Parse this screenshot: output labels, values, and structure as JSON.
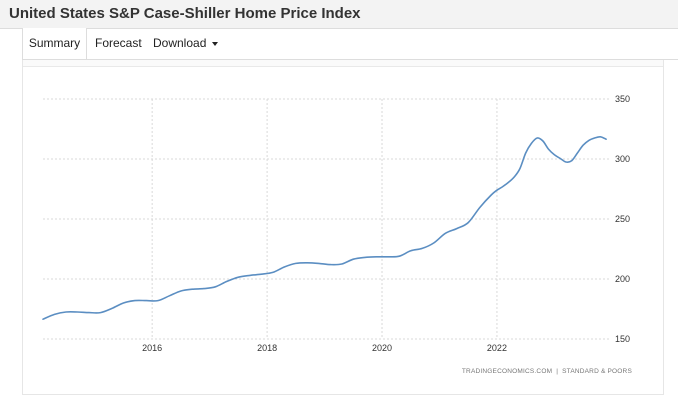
{
  "header": {
    "title": "United States S&P Case-Shiller Home Price Index"
  },
  "tabs": [
    {
      "label": "Summary"
    },
    {
      "label": "Forecast"
    },
    {
      "label": "Download"
    }
  ],
  "credit": {
    "source": "TRADINGECONOMICS.COM",
    "separator": "|",
    "provider": "STANDARD & POORS"
  },
  "colors": {
    "line": "#5b8ec2",
    "grid": "#d9d9d9"
  },
  "chart_data": {
    "type": "line",
    "title": "",
    "xlabel": "",
    "ylabel": "",
    "grid": true,
    "y_axis_side": "right",
    "xlim": [
      2014.1,
      2023.95
    ],
    "ylim": [
      150,
      350
    ],
    "x_ticks": [
      {
        "value": 2016,
        "label": "2016"
      },
      {
        "value": 2018,
        "label": "2018"
      },
      {
        "value": 2020,
        "label": "2020"
      },
      {
        "value": 2022,
        "label": "2022"
      }
    ],
    "y_ticks": [
      {
        "value": 150,
        "label": "150"
      },
      {
        "value": 200,
        "label": "200"
      },
      {
        "value": 250,
        "label": "250"
      },
      {
        "value": 300,
        "label": "300"
      },
      {
        "value": 350,
        "label": "350"
      }
    ],
    "series": [
      {
        "x": [
          2014.1,
          2014.3,
          2014.5,
          2014.7,
          2014.9,
          2015.1,
          2015.3,
          2015.5,
          2015.7,
          2015.9,
          2016.1,
          2016.3,
          2016.5,
          2016.7,
          2016.9,
          2017.1,
          2017.3,
          2017.5,
          2017.7,
          2017.9,
          2018.1,
          2018.3,
          2018.5,
          2018.7,
          2018.9,
          2019.1,
          2019.3,
          2019.5,
          2019.7,
          2019.9,
          2020.1,
          2020.3,
          2020.5,
          2020.7,
          2020.9,
          2021.1,
          2021.3,
          2021.5,
          2021.7,
          2021.9,
          2022.0,
          2022.1,
          2022.2,
          2022.3,
          2022.4,
          2022.5,
          2022.6,
          2022.7,
          2022.8,
          2022.9,
          2023.0,
          2023.1,
          2023.2,
          2023.3,
          2023.4,
          2023.5,
          2023.6,
          2023.7,
          2023.8,
          2023.9
        ],
        "values": [
          166.5,
          170.5,
          172.5,
          172.5,
          172,
          172,
          175.5,
          180,
          182,
          182,
          182,
          186,
          190,
          191.5,
          192,
          193.5,
          198,
          201.5,
          203,
          204,
          205.5,
          210,
          213,
          213.5,
          213,
          212,
          212.5,
          216.5,
          218,
          218.5,
          218.5,
          219,
          223.5,
          225.5,
          230,
          238,
          242,
          247,
          259.5,
          270,
          274,
          277,
          280.5,
          285,
          292,
          305,
          313,
          317.5,
          315,
          308,
          303.5,
          300.5,
          297.5,
          298.5,
          305,
          311.5,
          315.5,
          317.5,
          318.5,
          316.5
        ]
      }
    ]
  }
}
